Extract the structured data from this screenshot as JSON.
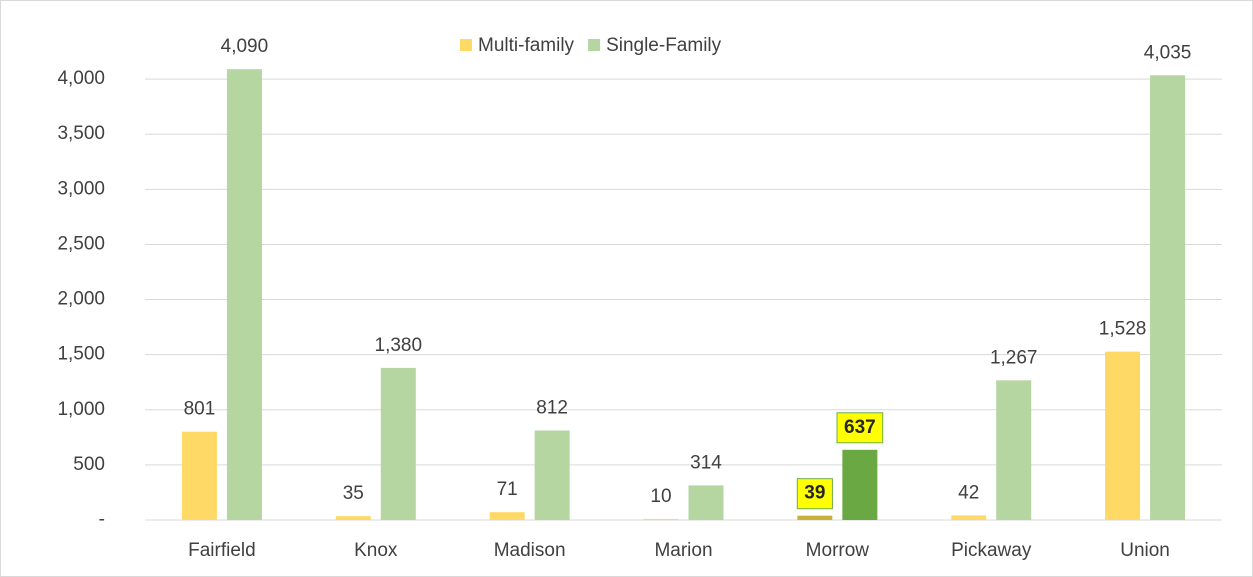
{
  "chart_data": {
    "type": "bar",
    "categories": [
      "Fairfield",
      "Knox",
      "Madison",
      "Marion",
      "Morrow",
      "Pickaway",
      "Union"
    ],
    "series": [
      {
        "name": "Multi-family",
        "color": "#ffd966",
        "highlight_color": "#c9b037",
        "values": [
          801,
          35,
          71,
          10,
          39,
          42,
          1528
        ],
        "value_labels": [
          "801",
          "35",
          "71",
          "10",
          "39",
          "42",
          "1,528"
        ]
      },
      {
        "name": "Single-Family",
        "color": "#b5d6a0",
        "highlight_color": "#6aa843",
        "values": [
          4090,
          1380,
          812,
          314,
          637,
          1267,
          4035
        ],
        "value_labels": [
          "4,090",
          "1,380",
          "812",
          "314",
          "637",
          "1,267",
          "4,035"
        ]
      }
    ],
    "highlight_index": 4,
    "ylim": [
      0,
      4500
    ],
    "yticks": [
      {
        "value": 0,
        "label": "-"
      },
      500,
      {
        "value": 1000,
        "label": "1,000"
      },
      {
        "value": 1500,
        "label": "1,500"
      },
      {
        "value": 2000,
        "label": "2,000"
      },
      {
        "value": 2500,
        "label": "2,500"
      },
      {
        "value": 3000,
        "label": "3,000"
      },
      {
        "value": 3500,
        "label": "3,500"
      },
      {
        "value": 4000,
        "label": "4,000"
      }
    ],
    "grid": true,
    "legend": "top"
  }
}
